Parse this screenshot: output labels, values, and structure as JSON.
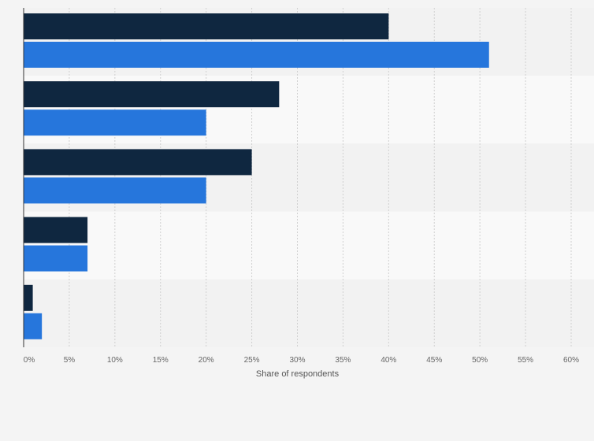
{
  "chart_data": {
    "type": "bar",
    "orientation": "horizontal",
    "categories": [
      "",
      "",
      "",
      "",
      ""
    ],
    "series": [
      {
        "values": [
          40,
          28,
          25,
          7,
          1
        ]
      },
      {
        "values": [
          51,
          20,
          20,
          7,
          2
        ]
      }
    ],
    "x_ticks": [
      "0%",
      "5%",
      "10%",
      "15%",
      "20%",
      "25%",
      "30%",
      "35%",
      "40%",
      "45%",
      "50%",
      "55%",
      "60%"
    ],
    "xlim": [
      0,
      60
    ],
    "xlabel": "Share of respondents",
    "ylabel": "",
    "title": "",
    "grid": "vertical dashed",
    "legend": "none"
  },
  "colors": {
    "series_dark": "#0f2740",
    "series_blue": "#2676dc",
    "band_dark": "#f2f2f2",
    "band_light": "#f9f9f9",
    "grid": "#d0d0d0",
    "axis": "#333333"
  }
}
